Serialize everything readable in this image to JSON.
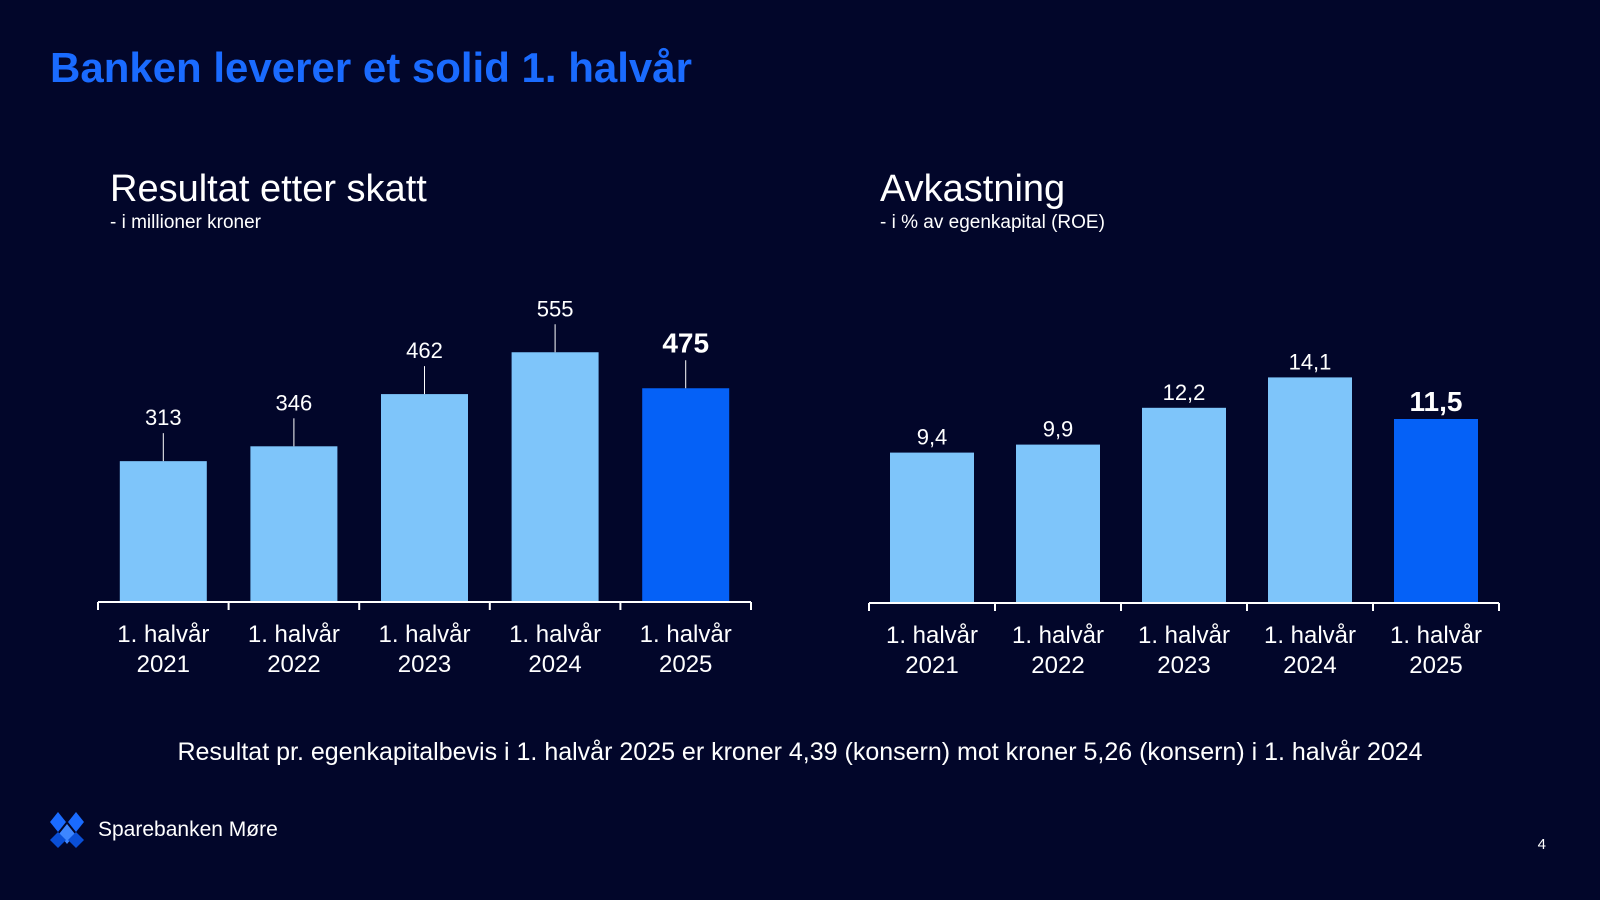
{
  "slide": {
    "title": "Banken leverer et solid 1. halvår",
    "footnote": "Resultat pr. egenkapitalbevis i 1. halvår 2025 er kroner 4,39 (konsern) mot kroner 5,26 (konsern) i 1. halvår 2024",
    "brand": "Sparebanken Møre",
    "page_number": "4"
  },
  "colors": {
    "background": "#02062a",
    "title": "#1a6bff",
    "bar_light": "#7ec5fa",
    "bar_highlight": "#0561f7",
    "text": "#ffffff"
  },
  "chart_data": [
    {
      "type": "bar",
      "title": "Resultat etter skatt",
      "subtitle": "- i millioner kroner",
      "categories": [
        [
          "1. halvår",
          "2021"
        ],
        [
          "1. halvår",
          "2022"
        ],
        [
          "1. halvår",
          "2023"
        ],
        [
          "1. halvår",
          "2024"
        ],
        [
          "1. halvår",
          "2025"
        ]
      ],
      "values": [
        313,
        346,
        462,
        555,
        475
      ],
      "value_labels": [
        "313",
        "346",
        "462",
        "555",
        "475"
      ],
      "highlight_index": 4,
      "ylim": [
        0,
        600
      ],
      "grid": false,
      "legend": "none"
    },
    {
      "type": "bar",
      "title": "Avkastning",
      "subtitle": "- i % av egenkapital (ROE)",
      "categories": [
        [
          "1. halvår",
          "2021"
        ],
        [
          "1. halvår",
          "2022"
        ],
        [
          "1. halvår",
          "2023"
        ],
        [
          "1. halvår",
          "2024"
        ],
        [
          "1. halvår",
          "2025"
        ]
      ],
      "values": [
        9.4,
        9.9,
        12.2,
        14.1,
        11.5
      ],
      "value_labels": [
        "9,4",
        "9,9",
        "12,2",
        "14,1",
        "11,5"
      ],
      "highlight_index": 4,
      "ylim": [
        0,
        15
      ],
      "grid": false,
      "legend": "none"
    }
  ]
}
